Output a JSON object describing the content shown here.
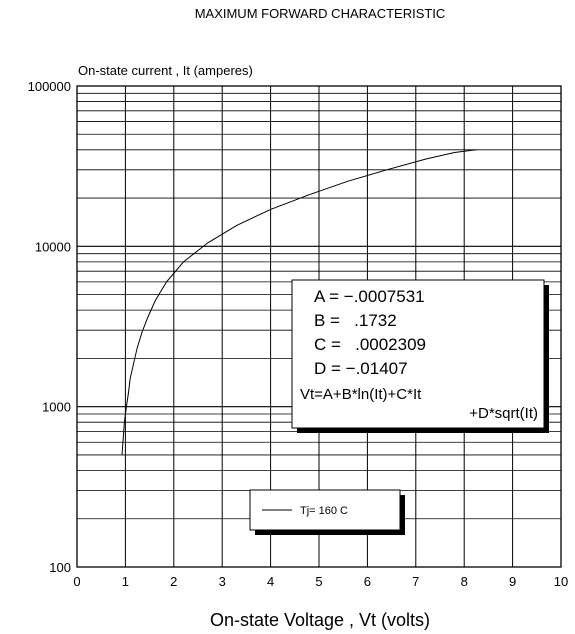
{
  "chart_data": {
    "type": "line",
    "title": "MAXIMUM FORWARD CHARACTERISTIC",
    "ylabel": "On-state current , It (amperes)",
    "xlabel": "On-state Voltage , Vt (volts)",
    "xlim": [
      0,
      10
    ],
    "ylim": [
      100,
      100000
    ],
    "yscale": "log",
    "grid": true,
    "x_ticks": [
      "0",
      "1",
      "2",
      "3",
      "4",
      "5",
      "6",
      "7",
      "8",
      "9",
      "10"
    ],
    "y_ticks": [
      "100",
      "1000",
      "10000",
      "100000"
    ],
    "series": [
      {
        "name": "Tj= 160 C",
        "x": [
          0.93,
          0.98,
          1.02,
          1.06,
          1.1,
          1.16,
          1.24,
          1.34,
          1.46,
          1.62,
          1.85,
          2.2,
          2.7,
          3.3,
          4.0,
          4.8,
          5.6,
          6.4,
          7.2,
          7.8,
          8.25
        ],
        "y": [
          500,
          800,
          1000,
          1200,
          1500,
          1800,
          2300,
          2900,
          3600,
          4600,
          6000,
          8000,
          10500,
          13500,
          17000,
          21000,
          25500,
          30000,
          35000,
          38500,
          40000
        ]
      }
    ],
    "legend": {
      "position": "bottom-center"
    },
    "annotation": {
      "lines": [
        "A = −.0007531",
        "B =   .1732",
        "C =   .0002309",
        "D = −.01407"
      ],
      "formula_1": "Vt=A+B*ln(It)+C*It",
      "formula_2": "+D*sqrt(It)"
    }
  }
}
